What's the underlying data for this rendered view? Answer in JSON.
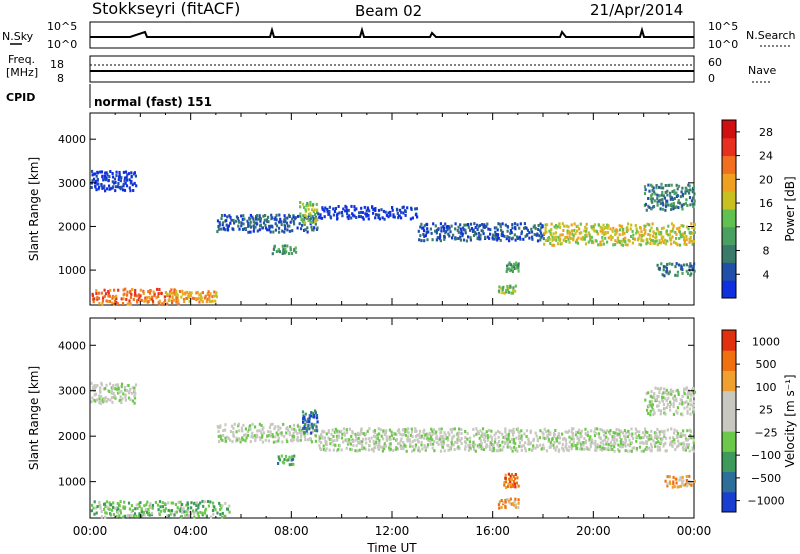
{
  "header": {
    "title": "Stokkseyri (fitACF)",
    "beam": "Beam 02",
    "date": "21/Apr/2014"
  },
  "status_panels": {
    "nsky_label": "N.Sky",
    "nsky_ticks": [
      "10^5",
      "10^0"
    ],
    "nsearch_label": "N.Search",
    "nsearch_ticks": [
      "10^5",
      "10^0"
    ],
    "freq_label_1": "Freq.",
    "freq_label_2": "[MHz]",
    "freq_ticks": [
      "18",
      "8"
    ],
    "nave_label": "Nave",
    "nave_ticks": [
      "60",
      "0"
    ],
    "cpid_label": "CPID",
    "cpid_text": "normal (fast) 151"
  },
  "chart_data": [
    {
      "type": "heatmap",
      "panel": "power",
      "ylabel": "Slant Range [km]",
      "yticks": [
        "1000",
        "2000",
        "3000",
        "4000"
      ],
      "ylim": [
        200,
        4600
      ],
      "xlim_hours": [
        0,
        24
      ],
      "colorbar_label": "Power [dB]",
      "colorbar_ticks": [
        "4",
        "8",
        "12",
        "16",
        "20",
        "24",
        "28"
      ],
      "colorbar_colors": [
        "#1030e0",
        "#2050a8",
        "#3a7a6a",
        "#4aa060",
        "#60c050",
        "#c8c020",
        "#f0a020",
        "#f07020",
        "#e83020",
        "#d01010"
      ],
      "scatter_bands": [
        {
          "t0": 0.0,
          "t1": 1.8,
          "r0": 2850,
          "r1": 3300,
          "level": 0
        },
        {
          "t0": 0.0,
          "t1": 3.5,
          "r0": 250,
          "r1": 600,
          "level": 7
        },
        {
          "t0": 3.0,
          "t1": 5.0,
          "r0": 300,
          "r1": 550,
          "level": 6
        },
        {
          "t0": 5.0,
          "t1": 9.0,
          "r0": 1900,
          "r1": 2300,
          "level": 1
        },
        {
          "t0": 7.2,
          "t1": 8.2,
          "r0": 1400,
          "r1": 1600,
          "level": 3
        },
        {
          "t0": 8.3,
          "t1": 9.0,
          "r0": 2100,
          "r1": 2600,
          "level": 4
        },
        {
          "t0": 9.0,
          "t1": 13.0,
          "r0": 2200,
          "r1": 2500,
          "level": 0
        },
        {
          "t0": 13.0,
          "t1": 18.0,
          "r0": 1700,
          "r1": 2100,
          "level": 1
        },
        {
          "t0": 16.2,
          "t1": 17.0,
          "r0": 500,
          "r1": 700,
          "level": 4
        },
        {
          "t0": 16.5,
          "t1": 17.0,
          "r0": 1000,
          "r1": 1200,
          "level": 3
        },
        {
          "t0": 18.0,
          "t1": 24.0,
          "r0": 1600,
          "r1": 2100,
          "level": 5
        },
        {
          "t0": 22.0,
          "t1": 24.0,
          "r0": 2400,
          "r1": 3000,
          "level": 2
        },
        {
          "t0": 22.5,
          "t1": 24.0,
          "r0": 900,
          "r1": 1200,
          "level": 2
        }
      ]
    },
    {
      "type": "heatmap",
      "panel": "velocity",
      "ylabel": "Slant Range [km]",
      "yticks": [
        "1000",
        "2000",
        "3000",
        "4000"
      ],
      "ylim": [
        200,
        4600
      ],
      "xlim_hours": [
        0,
        24
      ],
      "xticks": [
        "00:00",
        "04:00",
        "08:00",
        "12:00",
        "16:00",
        "20:00",
        "00:00"
      ],
      "xlabel": "Time UT",
      "colorbar_label": "Velocity [m s⁻¹]",
      "colorbar_ticks": [
        "1000",
        "500",
        "100",
        "25",
        "−25",
        "−100",
        "−500",
        "−1000"
      ],
      "colorbar_colors": [
        "#1a3fd0",
        "#2d6f9a",
        "#3d9a5a",
        "#6cc84a",
        "#c8c8c0",
        "#c8c8c0",
        "#f0a030",
        "#f07010",
        "#e03010"
      ],
      "scatter_bands": [
        {
          "t0": 0.0,
          "t1": 1.8,
          "r0": 2750,
          "r1": 3200,
          "level": 4
        },
        {
          "t0": 0.0,
          "t1": 5.5,
          "r0": 250,
          "r1": 600,
          "level": 3
        },
        {
          "t0": 5.0,
          "t1": 9.0,
          "r0": 1900,
          "r1": 2300,
          "level": 4
        },
        {
          "t0": 7.4,
          "t1": 8.1,
          "r0": 1400,
          "r1": 1600,
          "level": 2
        },
        {
          "t0": 8.4,
          "t1": 9.0,
          "r0": 2100,
          "r1": 2600,
          "level": 1
        },
        {
          "t0": 9.0,
          "t1": 24.0,
          "r0": 1700,
          "r1": 2200,
          "level": 4
        },
        {
          "t0": 16.2,
          "t1": 17.0,
          "r0": 450,
          "r1": 650,
          "level": 6
        },
        {
          "t0": 16.4,
          "t1": 17.0,
          "r0": 900,
          "r1": 1200,
          "level": 7
        },
        {
          "t0": 22.8,
          "t1": 24.0,
          "r0": 900,
          "r1": 1150,
          "level": 6
        },
        {
          "t0": 22.0,
          "t1": 24.0,
          "r0": 2500,
          "r1": 3100,
          "level": 4
        }
      ]
    }
  ]
}
